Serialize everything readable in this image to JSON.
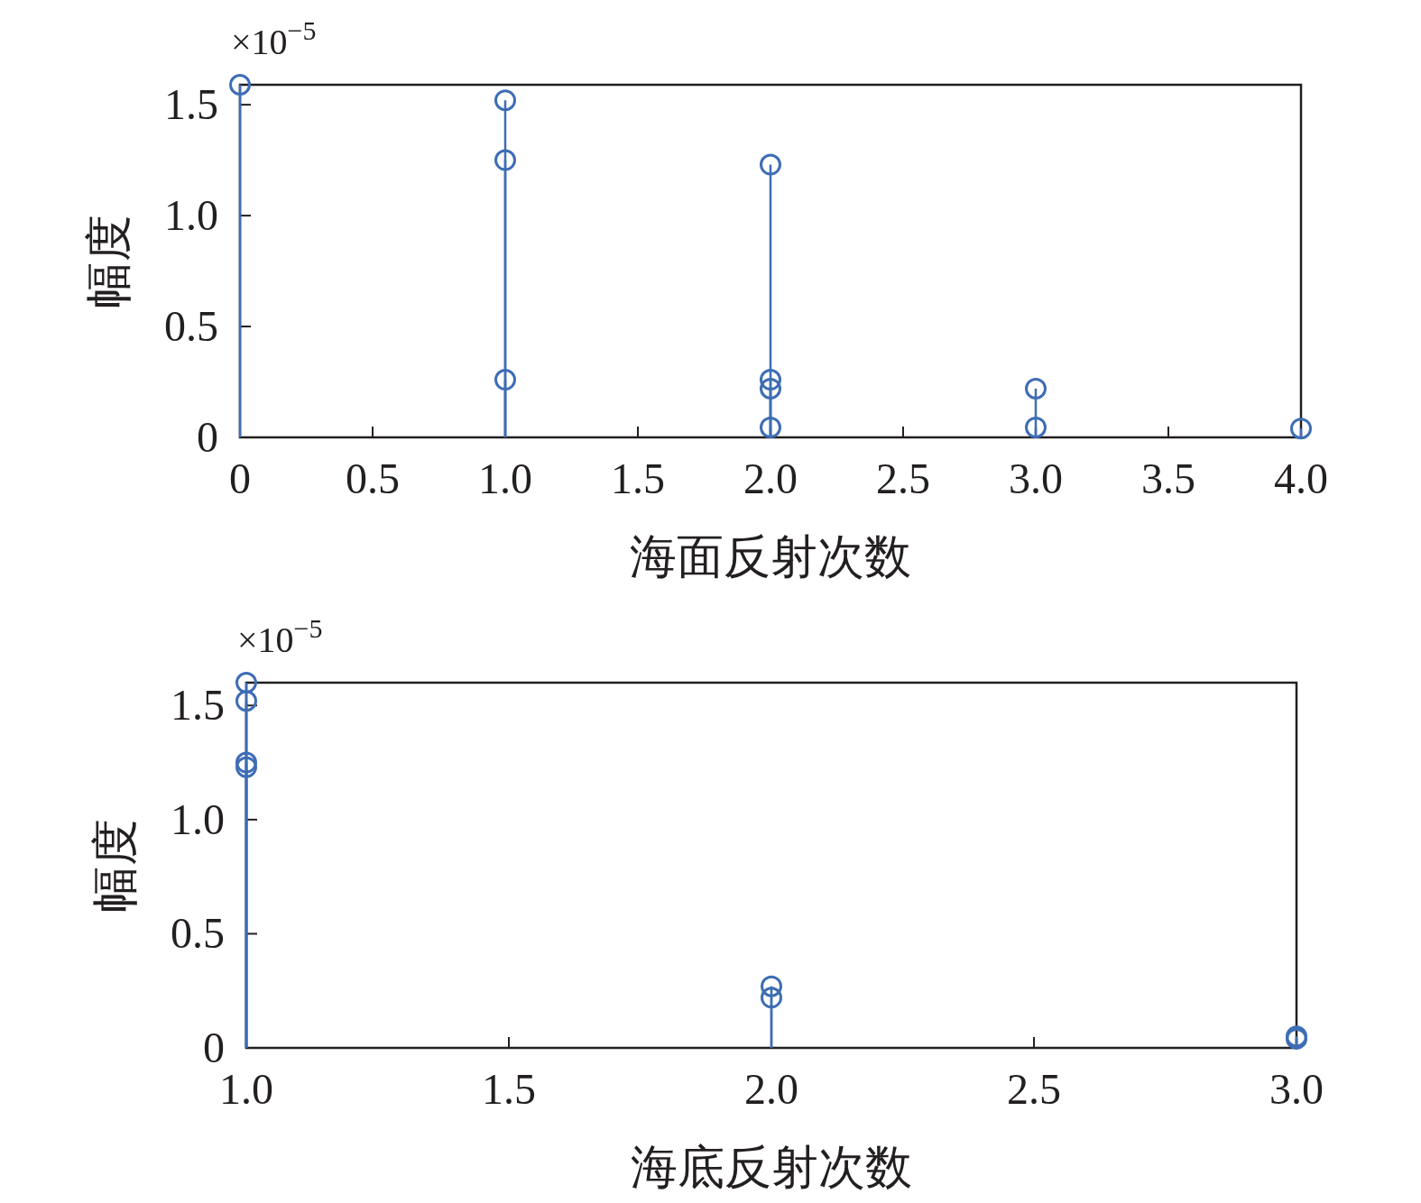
{
  "chart_data": [
    {
      "type": "lollipop",
      "grid": false,
      "xlabel": "海面反射次数",
      "ylabel": "幅度",
      "annotations": [
        "×10$^{−5}$"
      ],
      "color": "#3e6db5",
      "marker": "circle",
      "line_style": "solid",
      "x": [
        0,
        1,
        1,
        1,
        2,
        2,
        2,
        2,
        3,
        3,
        4
      ],
      "values": [
        1.59,
        1.52,
        1.25,
        0.26,
        1.23,
        0.26,
        0.22,
        0.045,
        0.22,
        0.045,
        0.04
      ],
      "xlim": [
        0,
        4
      ],
      "xticks": [
        0,
        0.5,
        {
          "value": 1,
          "label": "1.0"
        },
        1.5,
        {
          "value": 2,
          "label": "2.0"
        },
        2.5,
        {
          "value": 3,
          "label": "3.0"
        },
        3.5,
        {
          "value": 4,
          "label": "4.0"
        }
      ],
      "ylim": [
        0,
        1.59
      ],
      "yticks": [
        0,
        0.5,
        {
          "value": 1,
          "label": "1.0"
        },
        1.5
      ]
    },
    {
      "type": "lollipop",
      "grid": false,
      "xlabel": "海底反射次数",
      "ylabel": "幅度",
      "annotations": [
        "×10$^{−5}$"
      ],
      "color": "#3e6db5",
      "marker": "circle",
      "line_style": "solid",
      "x": [
        1,
        1,
        1,
        1,
        2,
        2,
        3,
        3
      ],
      "values": [
        1.6,
        1.52,
        1.25,
        1.23,
        0.27,
        0.22,
        0.05,
        0.04
      ],
      "xlim": [
        1,
        3
      ],
      "xticks": [
        {
          "value": 1,
          "label": "1.0"
        },
        1.5,
        {
          "value": 2,
          "label": "2.0"
        },
        2.5,
        {
          "value": 3,
          "label": "3.0"
        }
      ],
      "ylim": [
        0,
        1.6
      ],
      "yticks": [
        0,
        0.5,
        {
          "value": 1,
          "label": "1.0"
        },
        1.5
      ]
    }
  ]
}
